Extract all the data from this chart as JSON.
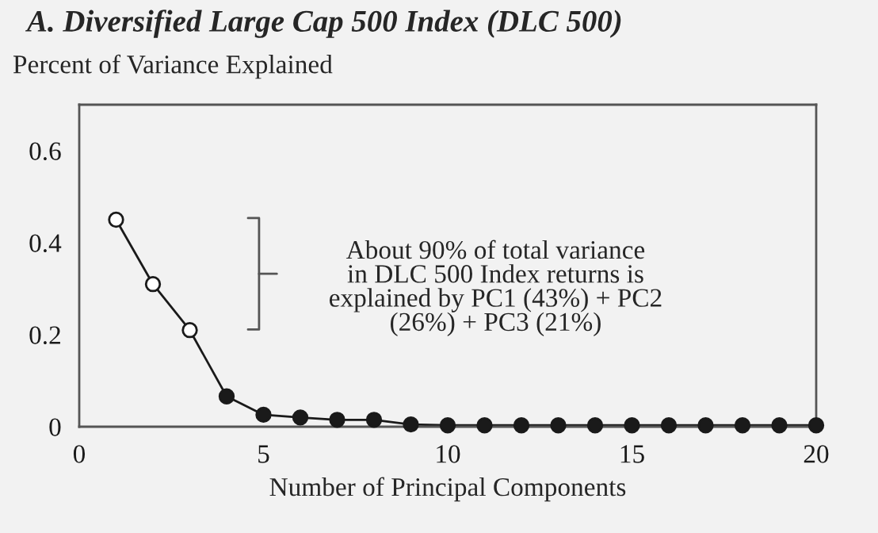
{
  "chart_data": {
    "type": "line",
    "title": "A. Diversified Large Cap 500 Index (DLC 500)",
    "ylabel": "Percent of Variance Explained",
    "xlabel": "Number of Principal Components",
    "series": [
      {
        "color": "#1a1a1a",
        "marker": "none",
        "x": [
          1,
          2,
          3,
          4,
          5,
          6,
          7,
          8,
          9,
          10,
          11,
          12,
          13,
          14,
          15,
          16,
          17,
          18,
          19,
          20
        ],
        "values": [
          0.45,
          0.31,
          0.21,
          0.066,
          0.026,
          0.02,
          0.015,
          0.015,
          0.005,
          0.003,
          0.003,
          0.003,
          0.003,
          0.003,
          0.003,
          0.003,
          0.003,
          0.003,
          0.003,
          0.003
        ]
      },
      {
        "type": "scatter",
        "color": "#ffffff",
        "marker": "circle",
        "x": [
          1,
          2,
          3
        ],
        "values": [
          0.45,
          0.31,
          0.21
        ]
      },
      {
        "type": "scatter",
        "color": "#1a1a1a",
        "marker": "circle",
        "x": [
          4,
          5,
          6,
          7,
          8,
          9,
          10,
          11,
          12,
          13,
          14,
          15,
          16,
          17,
          18,
          19,
          20
        ],
        "values": [
          0.066,
          0.026,
          0.02,
          0.015,
          0.015,
          0.005,
          0.003,
          0.003,
          0.003,
          0.003,
          0.003,
          0.003,
          0.003,
          0.003,
          0.003,
          0.003,
          0.003
        ]
      }
    ],
    "xlim": [
      0,
      20
    ],
    "xticks": [
      0,
      5,
      10,
      15,
      20
    ],
    "ylim": [
      0,
      0.7
    ],
    "yticks": [
      0,
      0.2,
      0.4,
      0.6
    ],
    "grid": false,
    "legend": false,
    "annotations": [
      "About 90% of total variance\nin DLC 500 Index returns is\nexplained by PC1 (43%) + PC2\n(26%) + PC3 (21%)"
    ]
  }
}
